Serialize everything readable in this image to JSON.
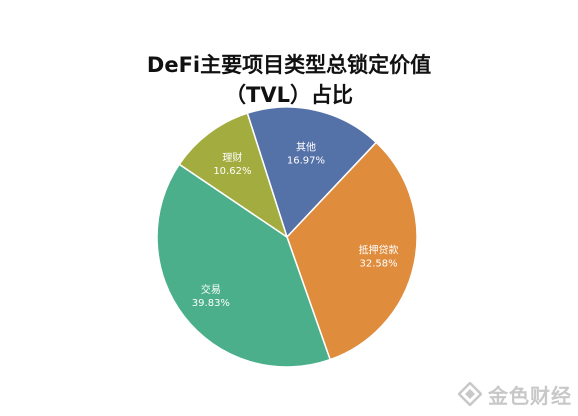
{
  "chart_data": {
    "type": "pie",
    "title_line1": "DeFi主要项目类型总锁定价值",
    "title_line2": "（TVL）占比",
    "slices": [
      {
        "label": "其他",
        "value": 16.97,
        "pct_text": "16.97%",
        "color": "#5572A8"
      },
      {
        "label": "抵押贷款",
        "value": 32.58,
        "pct_text": "32.58%",
        "color": "#DF8C3C"
      },
      {
        "label": "交易",
        "value": 39.83,
        "pct_text": "39.83%",
        "color": "#4BAF8C"
      },
      {
        "label": "理财",
        "value": 10.62,
        "pct_text": "10.62%",
        "color": "#A3AD3F"
      }
    ]
  },
  "watermark": {
    "text": "金色财经"
  }
}
